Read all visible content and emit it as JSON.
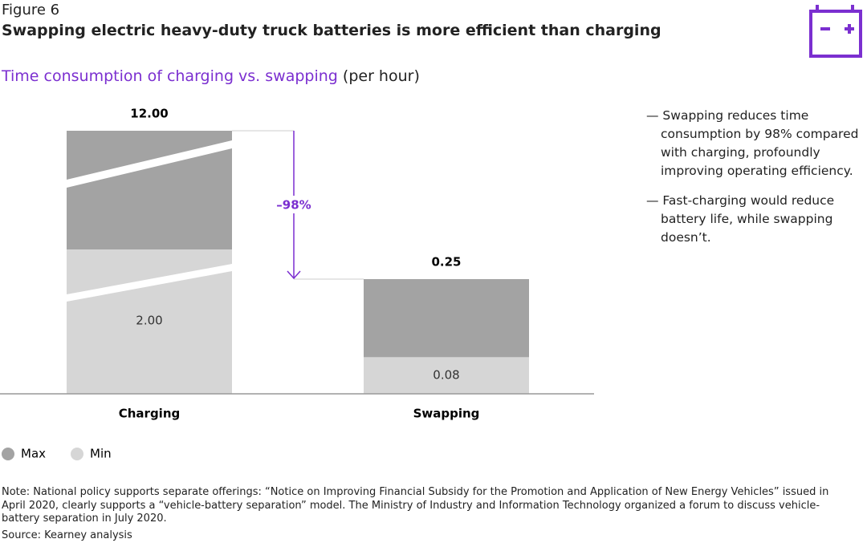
{
  "chart_data": {
    "type": "bar",
    "figure_label": "Figure 6",
    "title": "Swapping electric heavy-duty truck batteries is more efficient than charging",
    "subtitle": "Time consumption of charging vs. swapping",
    "subtitle_unit": "(per hour)",
    "categories": [
      "Charging",
      "Swapping"
    ],
    "series": [
      {
        "name": "Max",
        "color": "#a3a3a3",
        "values": [
          12,
          0.25
        ],
        "value_labels": [
          "12.00",
          "0.25"
        ]
      },
      {
        "name": "Min",
        "color": "#d6d6d6",
        "values": [
          2,
          0.08
        ],
        "value_labels": [
          "2.00",
          "0.08"
        ]
      }
    ],
    "annotation": "–98%",
    "annotation_color": "#7b2fd0",
    "notes": [
      "— Swapping reduces time consumption by 98% compared with charging, profoundly improving operating efficiency.",
      "— Fast-charging would reduce battery life, while swapping doesn’t."
    ],
    "footnote": "Note: National policy supports separate offerings: “Notice on Improving Financial Subsidy for the Promotion and Application of New Energy Vehicles” issued in April 2020, clearly supports a “vehicle-battery separation” model. The Ministry of Industry and Information Technology organized a forum to discuss vehicle-battery separation in July 2020.",
    "source": "Source: Kearney analysis"
  }
}
